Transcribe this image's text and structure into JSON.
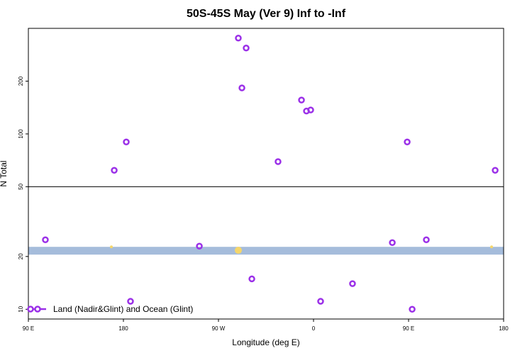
{
  "chart_data": {
    "type": "scatter",
    "title": "50S-45S May (Ver 9)   Inf to -Inf",
    "x_label": "Longitude (deg E)",
    "y_label": "N Total",
    "xlim": [
      90,
      540
    ],
    "xticks": [
      {
        "value": 90,
        "label": "90 E"
      },
      {
        "value": 180,
        "label": "180"
      },
      {
        "value": 270,
        "label": "90 W"
      },
      {
        "value": 360,
        "label": "0"
      },
      {
        "value": 450,
        "label": "90 E"
      },
      {
        "value": 540,
        "label": "180"
      }
    ],
    "ylim": [
      8.8,
      400
    ],
    "yticks": [
      10,
      20,
      50,
      100,
      200
    ],
    "log_y": true,
    "hline": 50,
    "band": {
      "range": [
        20.5,
        22.7
      ],
      "color": "#a5bcdb"
    },
    "legend": "bottom-left",
    "series": [
      {
        "name": "Land (Nadir&Glint) and Ocean (Glint)",
        "color": "#9b30e8",
        "x": [
          288.8,
          296.2,
          292.2,
          348.6,
          353.3,
          357.3,
          182.7,
          171.3,
          326.4,
          448.7,
          532,
          106.1,
          251.9,
          434.6,
          466.8,
          301.6,
          396.9,
          186.7,
          366.7,
          453.4
        ],
        "values": [
          352,
          309,
          183,
          156,
          135,
          137,
          90,
          62,
          69.5,
          90,
          62,
          24.9,
          22.9,
          24.0,
          24.9,
          14.9,
          14.0,
          11.1,
          11.1,
          10
        ]
      },
      {
        "color": "#f5d66b",
        "x": [
          168.6,
          288.8,
          528.6
        ],
        "values": [
          22.7,
          21.7,
          22.7
        ]
      }
    ]
  }
}
